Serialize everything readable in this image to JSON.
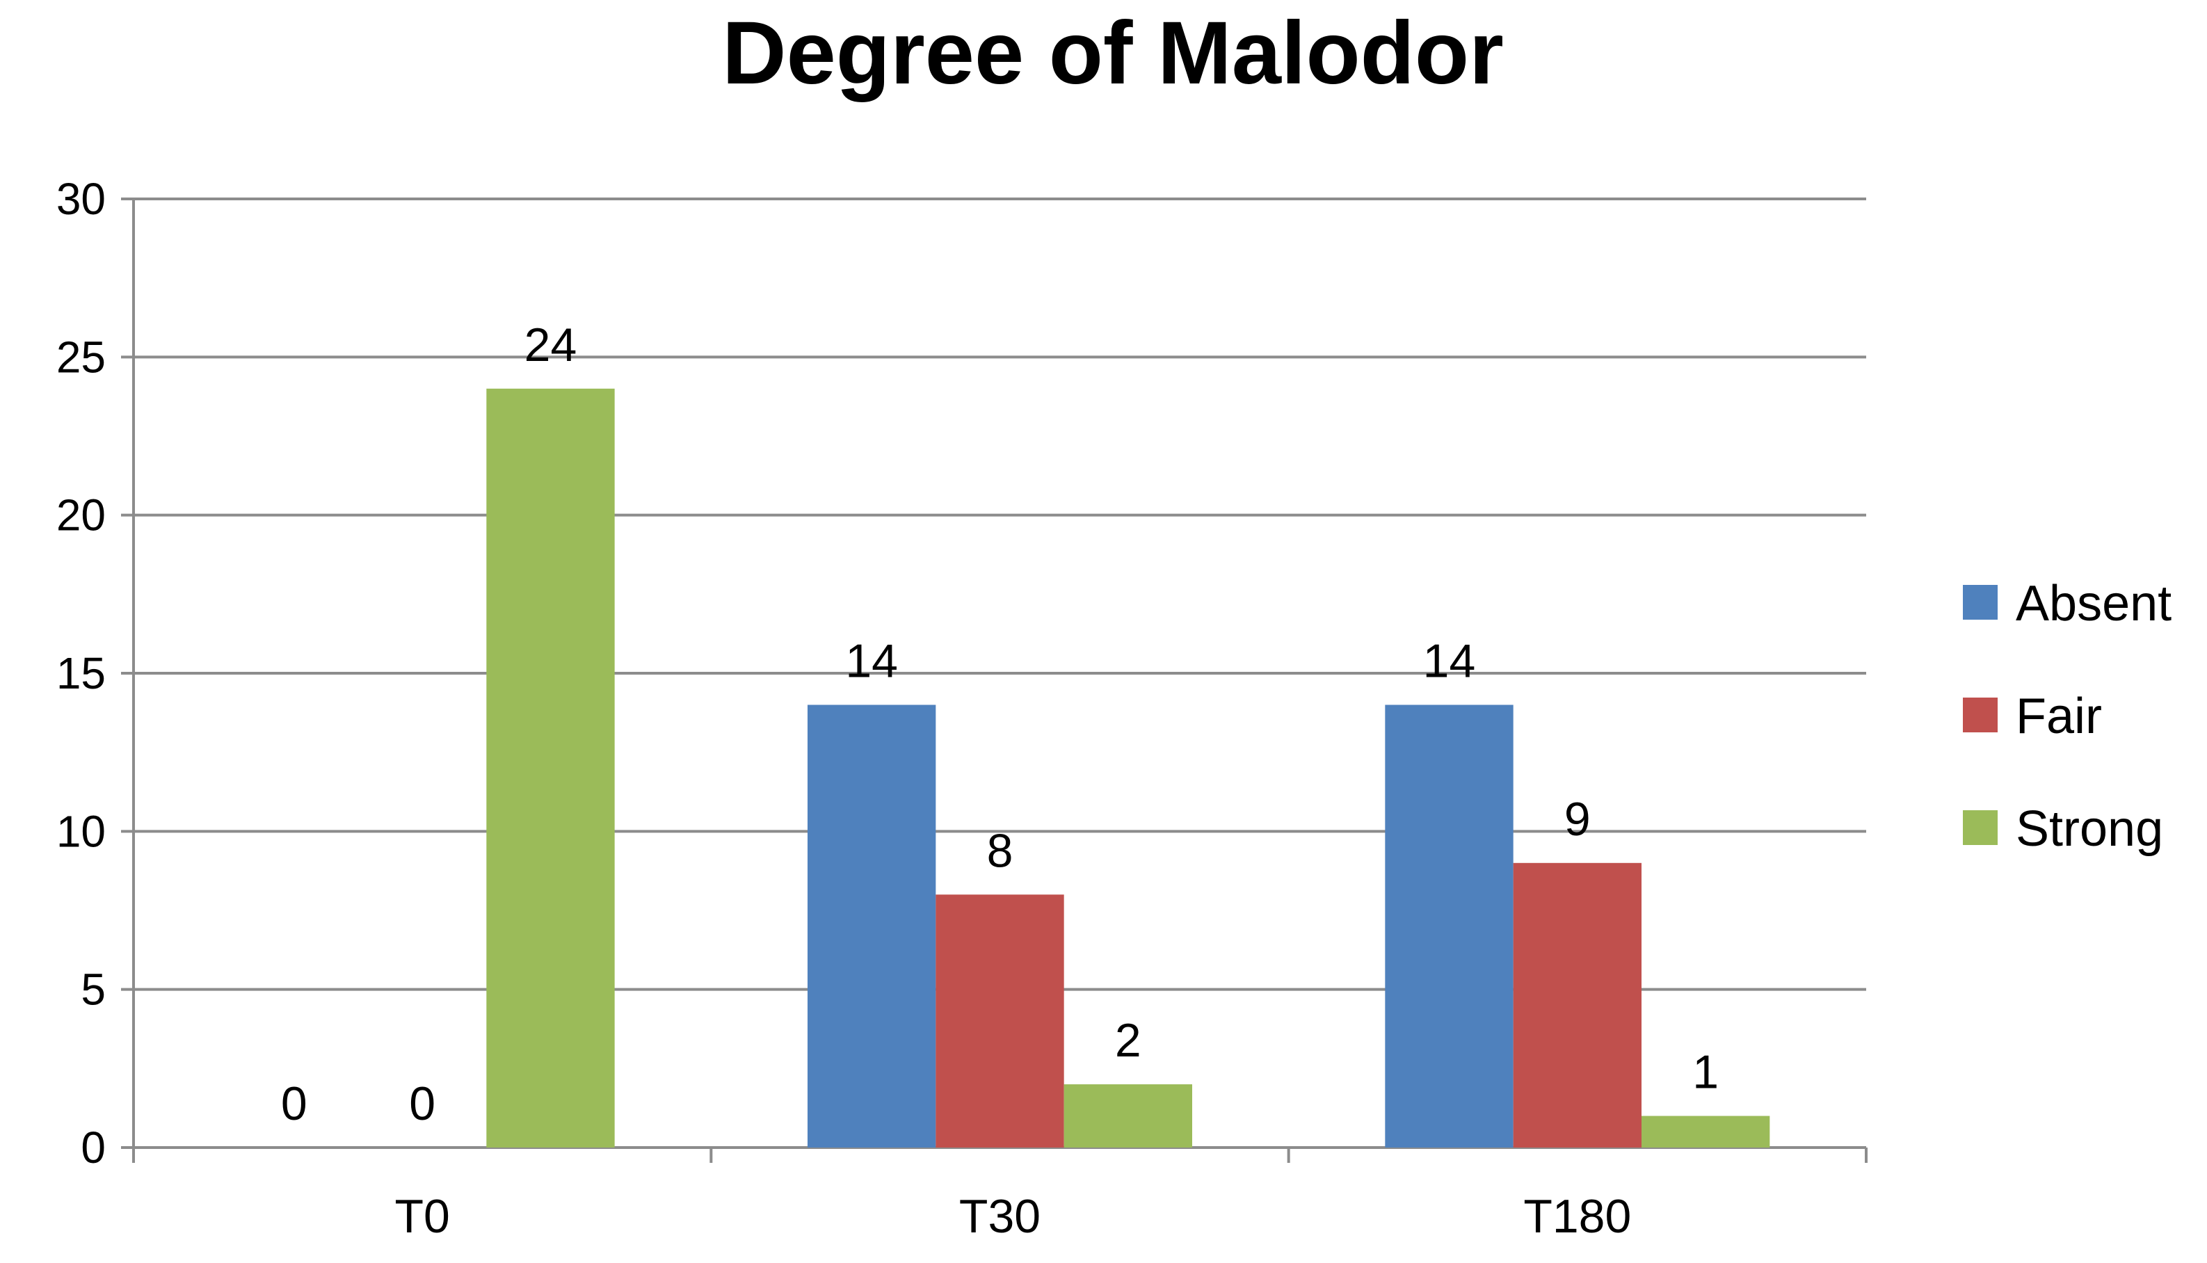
{
  "chart_data": {
    "type": "bar",
    "title": "Degree of Malodor",
    "categories": [
      "T0",
      "T30",
      "T180"
    ],
    "series": [
      {
        "name": "Absent",
        "color": "#4F81BD",
        "values": [
          0,
          14,
          14
        ]
      },
      {
        "name": "Fair",
        "color": "#C0504D",
        "values": [
          0,
          8,
          9
        ]
      },
      {
        "name": "Strong",
        "color": "#9BBB59",
        "values": [
          24,
          2,
          1
        ]
      }
    ],
    "ylim": [
      0,
      30
    ],
    "yticks": [
      0,
      5,
      10,
      15,
      20,
      25,
      30
    ],
    "xlabel": "",
    "ylabel": "",
    "grid": true,
    "legend": "right",
    "data_labels": true
  }
}
